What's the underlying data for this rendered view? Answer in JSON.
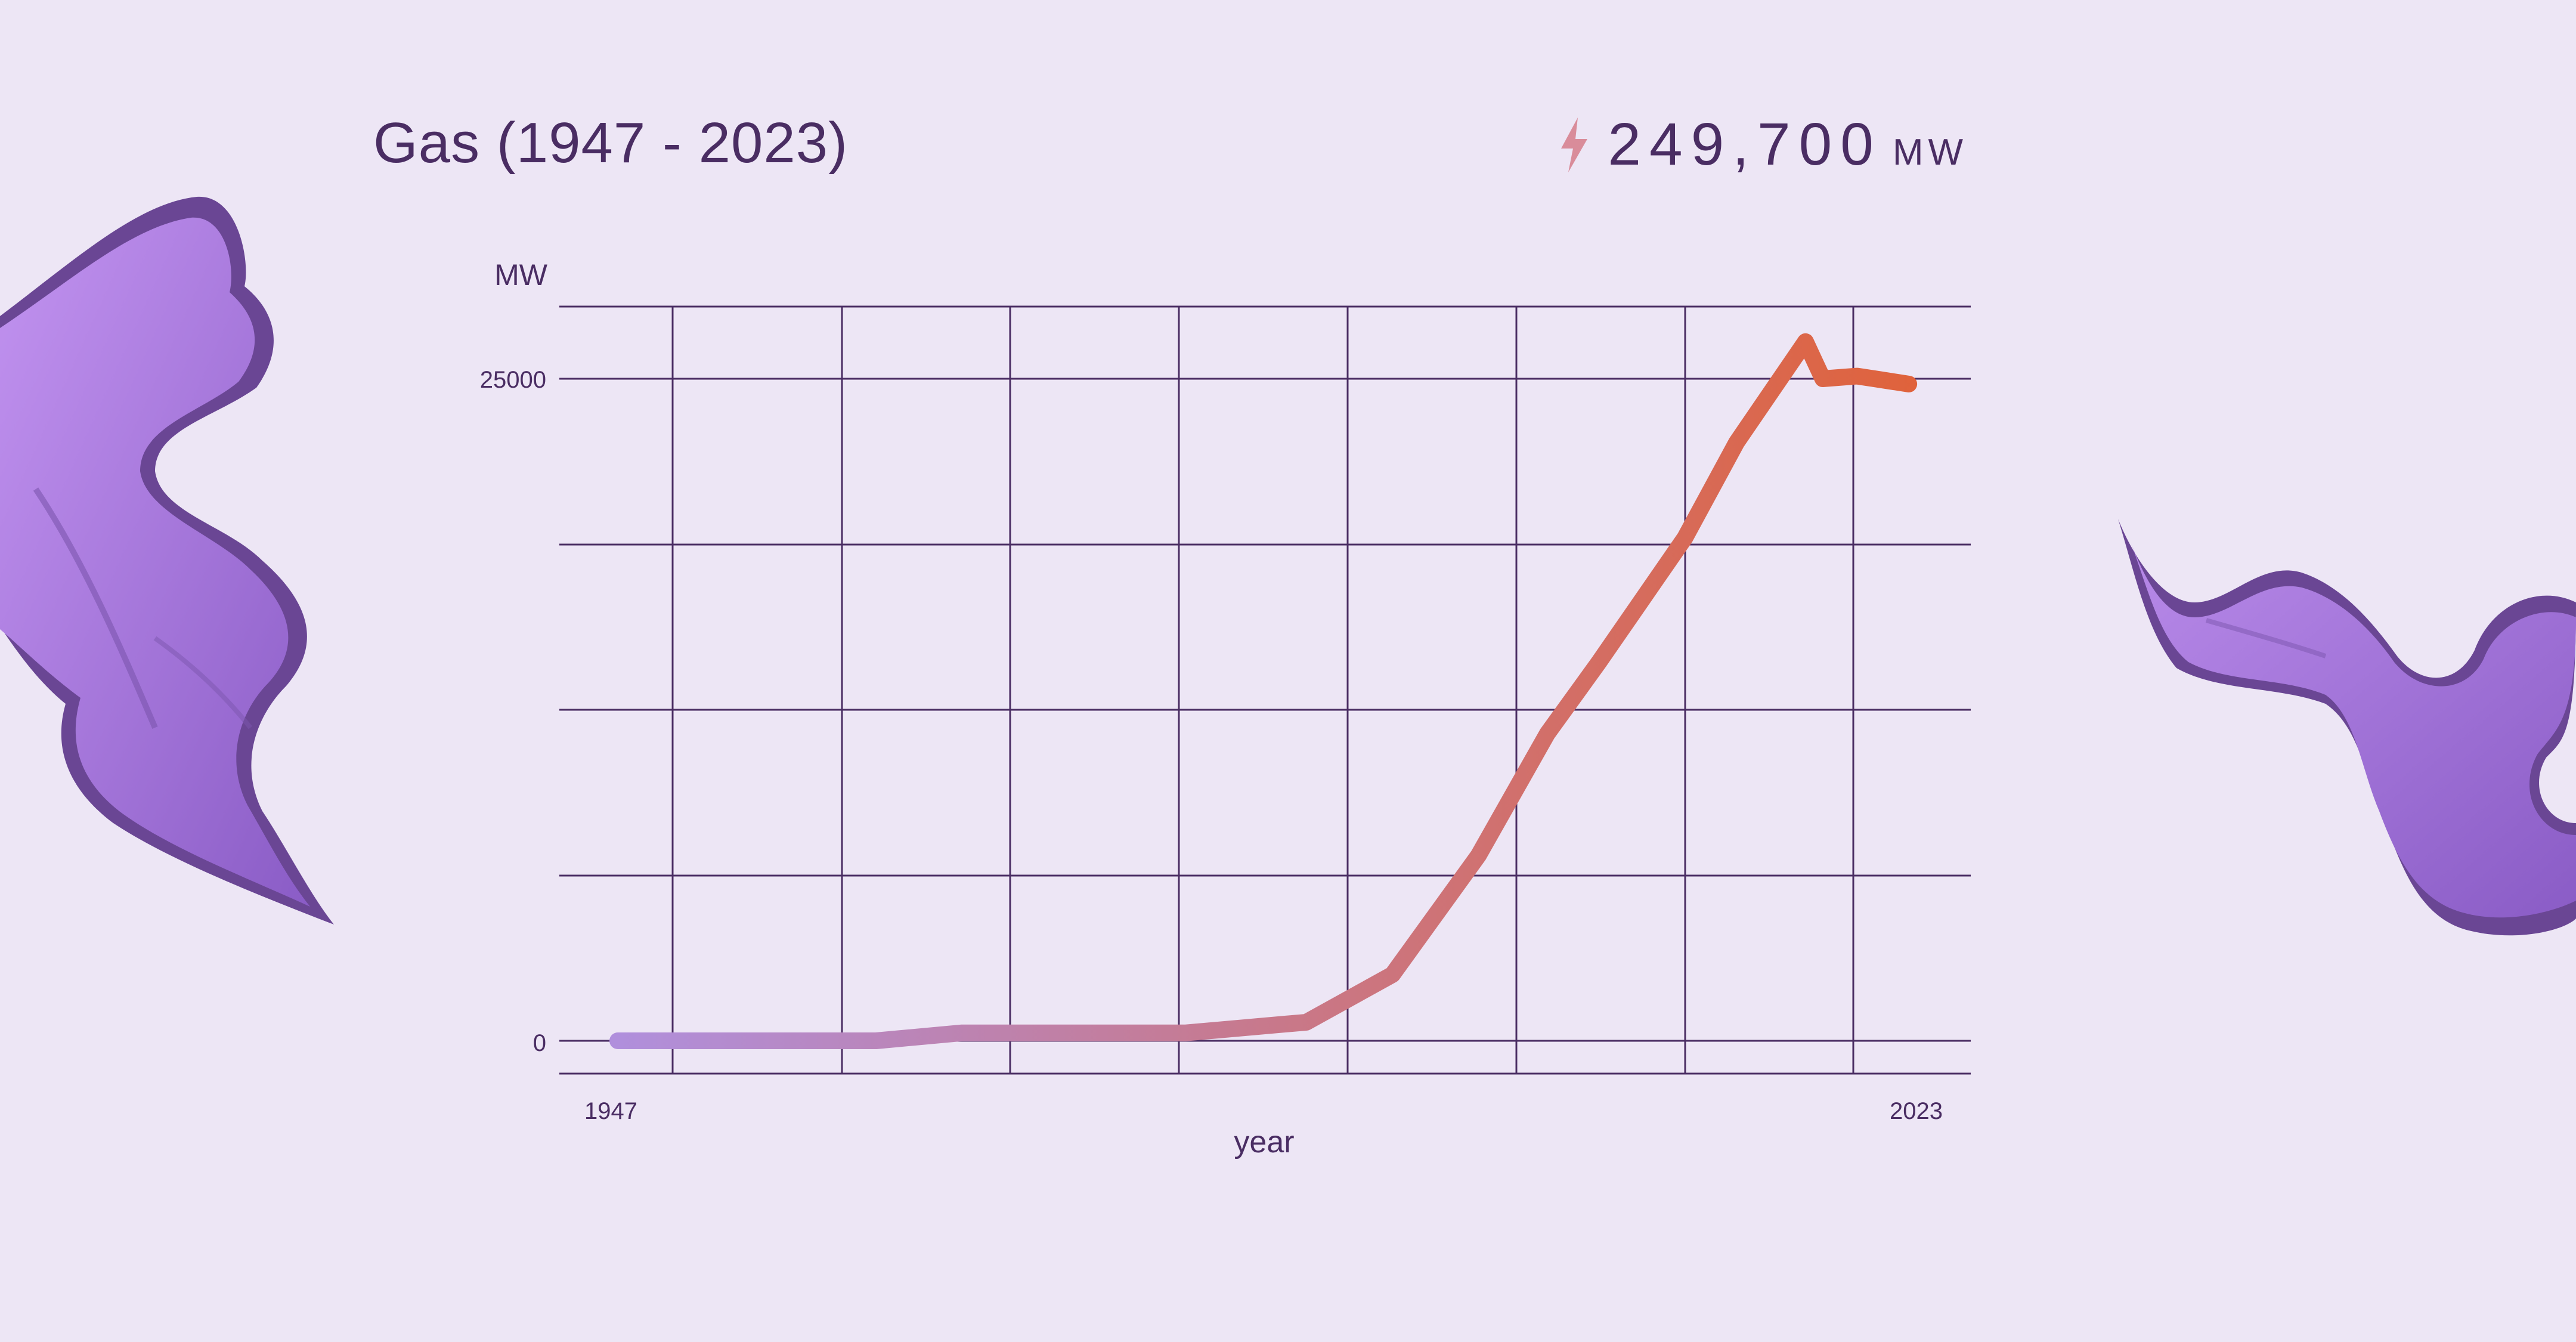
{
  "title": "Gas (1947 - 2023)",
  "total": {
    "value": "249,700",
    "unit": "MW",
    "icon": "lightning-bolt-icon"
  },
  "colors": {
    "background": "#ede6f5",
    "text": "#4a2d63",
    "grid": "#4a2d63",
    "line_start": "#b08fdc",
    "line_end": "#e0623a",
    "decoration": "#9a6ad6"
  },
  "chart_data": {
    "type": "line",
    "title": "Gas (1947 - 2023)",
    "xlabel": "year",
    "ylabel": "MW",
    "x_tick_labels": [
      "1947",
      "2023"
    ],
    "y_tick_labels": [
      "0",
      "25000"
    ],
    "xlim": [
      1947,
      2023
    ],
    "ylim": [
      -1250,
      28000
    ],
    "grid": true,
    "x": [
      1947,
      1952,
      1962,
      1967,
      1980,
      1987,
      1992,
      1997,
      2001,
      2004,
      2009,
      2012,
      2016,
      2017,
      2019,
      2020,
      2022
    ],
    "y": [
      0,
      0,
      0,
      300,
      300,
      700,
      2500,
      7000,
      11600,
      14300,
      19000,
      22600,
      26400,
      25000,
      25100,
      25000,
      24800
    ]
  }
}
